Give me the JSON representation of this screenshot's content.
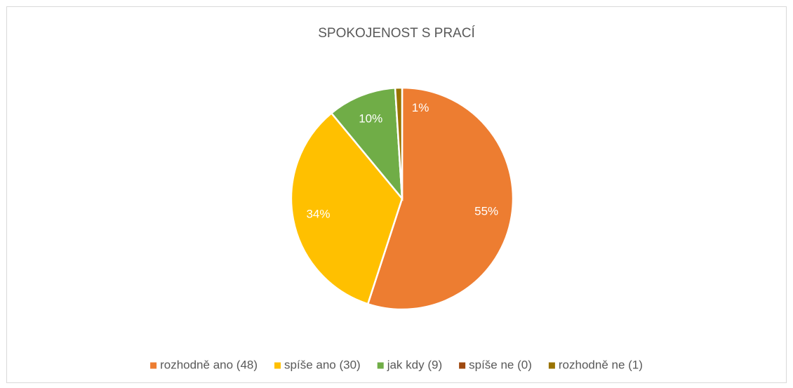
{
  "chart_data": {
    "type": "pie",
    "title": "SPOKOJENOST S PRACÍ",
    "categories": [
      "rozhodně ano (48)",
      "spíše ano (30)",
      "jak kdy (9)",
      "spíše ne (0)",
      "rozhodně ne (1)"
    ],
    "values": [
      55,
      34,
      10,
      0,
      1
    ],
    "value_labels": [
      "55%",
      "34%",
      "10%",
      null,
      "1%"
    ],
    "colors": [
      "#ed7d31",
      "#ffc000",
      "#70ad47",
      "#9e480e",
      "#997300"
    ],
    "legend": "bottom"
  }
}
